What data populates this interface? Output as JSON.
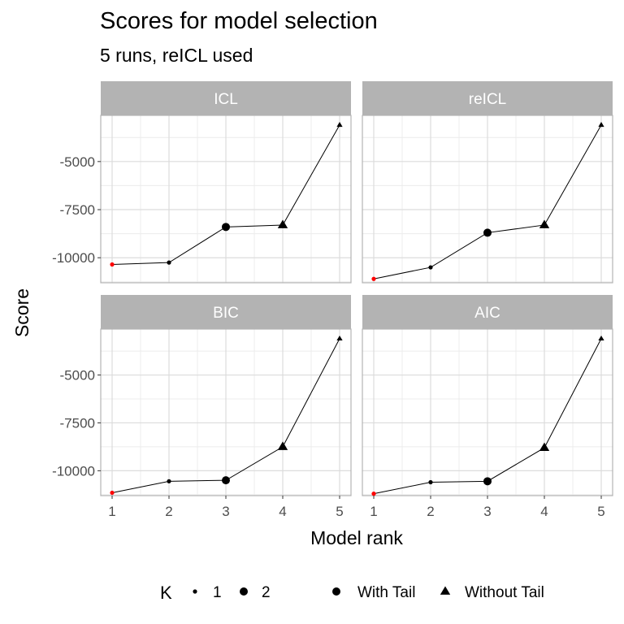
{
  "chart_data": {
    "type": "line",
    "title": "Scores for model selection",
    "subtitle": "5 runs,  reICL used",
    "xlabel": "Model rank",
    "ylabel": "Score",
    "x_ticks": [
      1,
      2,
      3,
      4,
      5
    ],
    "y_ticks": [
      {
        "value": -5000,
        "label": "-5000"
      },
      {
        "value": -7500,
        "label": "-7500"
      },
      {
        "value": -10000,
        "label": "-10000"
      }
    ],
    "ylim": [
      -11300,
      -2600
    ],
    "grid": true,
    "legend_position": "bottom",
    "highlight_color": "#ff0000",
    "panels": [
      {
        "name": "ICL",
        "points": [
          {
            "x": 1,
            "y": -10350,
            "K": 1,
            "tail": "With Tail",
            "selected": true
          },
          {
            "x": 2,
            "y": -10250,
            "K": 1,
            "tail": "With Tail"
          },
          {
            "x": 3,
            "y": -8400,
            "K": 2,
            "tail": "With Tail"
          },
          {
            "x": 4,
            "y": -8300,
            "K": 2,
            "tail": "Without Tail"
          },
          {
            "x": 5,
            "y": -3100,
            "K": 1,
            "tail": "Without Tail"
          }
        ]
      },
      {
        "name": "reICL",
        "points": [
          {
            "x": 1,
            "y": -11100,
            "K": 1,
            "tail": "With Tail",
            "selected": true
          },
          {
            "x": 2,
            "y": -10500,
            "K": 1,
            "tail": "With Tail"
          },
          {
            "x": 3,
            "y": -8700,
            "K": 2,
            "tail": "With Tail"
          },
          {
            "x": 4,
            "y": -8300,
            "K": 2,
            "tail": "Without Tail"
          },
          {
            "x": 5,
            "y": -3100,
            "K": 1,
            "tail": "Without Tail"
          }
        ]
      },
      {
        "name": "BIC",
        "points": [
          {
            "x": 1,
            "y": -11150,
            "K": 1,
            "tail": "With Tail",
            "selected": true
          },
          {
            "x": 2,
            "y": -10550,
            "K": 1,
            "tail": "With Tail"
          },
          {
            "x": 3,
            "y": -10500,
            "K": 2,
            "tail": "With Tail"
          },
          {
            "x": 4,
            "y": -8750,
            "K": 2,
            "tail": "Without Tail"
          },
          {
            "x": 5,
            "y": -3100,
            "K": 1,
            "tail": "Without Tail"
          }
        ]
      },
      {
        "name": "AIC",
        "points": [
          {
            "x": 1,
            "y": -11200,
            "K": 1,
            "tail": "With Tail",
            "selected": true
          },
          {
            "x": 2,
            "y": -10600,
            "K": 1,
            "tail": "With Tail"
          },
          {
            "x": 3,
            "y": -10550,
            "K": 2,
            "tail": "With Tail"
          },
          {
            "x": 4,
            "y": -8800,
            "K": 2,
            "tail": "Without Tail"
          },
          {
            "x": 5,
            "y": -3100,
            "K": 1,
            "tail": "Without Tail"
          }
        ]
      }
    ],
    "legend": {
      "size_title": "K",
      "size_entries": [
        {
          "label": "1",
          "K": 1
        },
        {
          "label": "2",
          "K": 2
        }
      ],
      "shape_entries": [
        {
          "label": "With Tail",
          "shape": "circle"
        },
        {
          "label": "Without Tail",
          "shape": "triangle"
        }
      ]
    }
  }
}
